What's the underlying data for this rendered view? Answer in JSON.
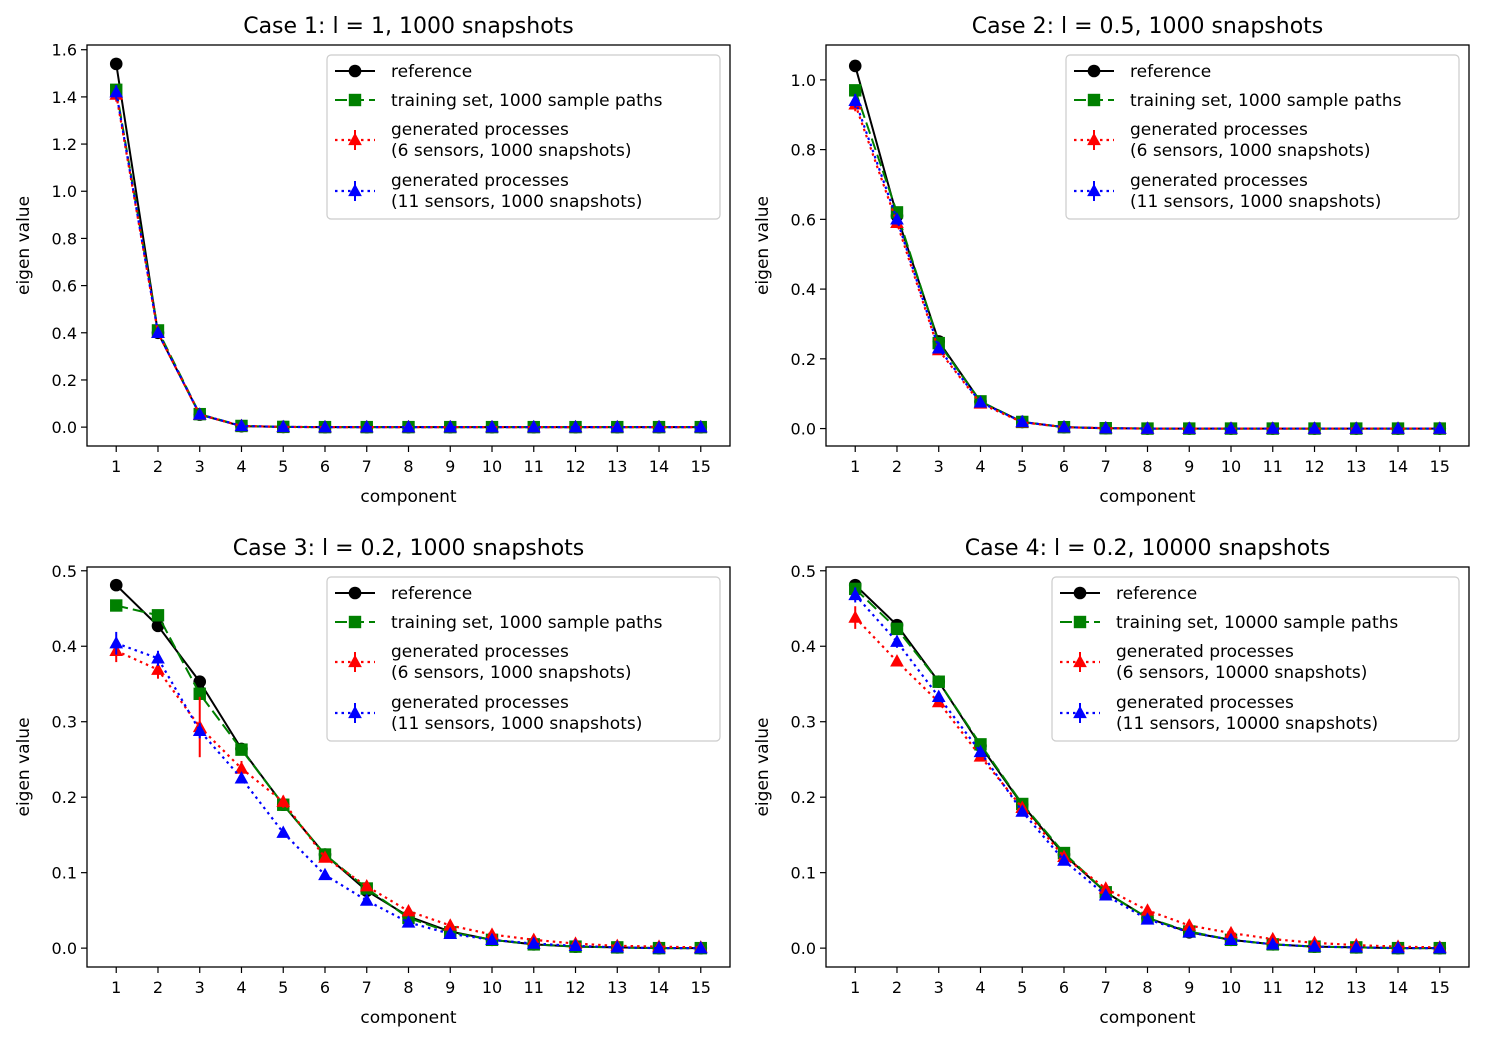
{
  "colors": {
    "reference": "#000000",
    "training": "#008000",
    "gen6": "#ff0000",
    "gen11": "#0000ff"
  },
  "chart_data": [
    {
      "type": "line",
      "title": "Case 1: l = 1, 1000 snapshots",
      "xlabel": "component",
      "ylabel": "eigen value",
      "ylim": [
        -0.08,
        1.62
      ],
      "yticks": [
        0.0,
        0.2,
        0.4,
        0.6,
        0.8,
        1.0,
        1.2,
        1.4,
        1.6
      ],
      "ytick_labels": [
        "0.0",
        "0.2",
        "0.4",
        "0.6",
        "0.8",
        "1.0",
        "1.2",
        "1.4",
        "1.6"
      ],
      "x": [
        1,
        2,
        3,
        4,
        5,
        6,
        7,
        8,
        9,
        10,
        11,
        12,
        13,
        14,
        15
      ],
      "legend_position": "upper right",
      "series": [
        {
          "name": "reference",
          "style": "solid",
          "marker": "circle",
          "color_key": "reference",
          "values": [
            1.54,
            0.4,
            0.053,
            0.004,
            0.001,
            0.0,
            0.0,
            0.0,
            0.0,
            0.0,
            0.0,
            0.0,
            0.0,
            0.0,
            0.0
          ]
        },
        {
          "name": "training set, 1000 sample paths",
          "style": "dashed",
          "marker": "square",
          "color_key": "training",
          "values": [
            1.43,
            0.41,
            0.055,
            0.005,
            0.001,
            0.0,
            0.0,
            0.0,
            0.0,
            0.0,
            0.0,
            0.0,
            0.0,
            0.0,
            0.0
          ]
        },
        {
          "name": [
            "generated processes",
            "(6 sensors, 1000 snapshots)"
          ],
          "style": "dotted",
          "marker": "triangle",
          "color_key": "gen6",
          "values": [
            1.41,
            0.4,
            0.053,
            0.005,
            0.001,
            0.0,
            0.0,
            0.0,
            0.0,
            0.0,
            0.0,
            0.0,
            0.0,
            0.0,
            0.0
          ],
          "errors": [
            0.03,
            0.01,
            0.005,
            0,
            0,
            0,
            0,
            0,
            0,
            0,
            0,
            0,
            0,
            0,
            0
          ]
        },
        {
          "name": [
            "generated processes",
            "(11 sensors, 1000 snapshots)"
          ],
          "style": "dotted",
          "marker": "triangle",
          "color_key": "gen11",
          "values": [
            1.42,
            0.4,
            0.054,
            0.005,
            0.001,
            0.0,
            0.0,
            0.0,
            0.0,
            0.0,
            0.0,
            0.0,
            0.0,
            0.0,
            0.0
          ],
          "errors": [
            0.03,
            0.01,
            0.005,
            0,
            0,
            0,
            0,
            0,
            0,
            0,
            0,
            0,
            0,
            0,
            0
          ]
        }
      ]
    },
    {
      "type": "line",
      "title": "Case 2: l = 0.5, 1000 snapshots",
      "xlabel": "component",
      "ylabel": "eigen value",
      "ylim": [
        -0.05,
        1.1
      ],
      "yticks": [
        0.0,
        0.2,
        0.4,
        0.6,
        0.8,
        1.0
      ],
      "ytick_labels": [
        "0.0",
        "0.2",
        "0.4",
        "0.6",
        "0.8",
        "1.0"
      ],
      "x": [
        1,
        2,
        3,
        4,
        5,
        6,
        7,
        8,
        9,
        10,
        11,
        12,
        13,
        14,
        15
      ],
      "legend_position": "upper right",
      "series": [
        {
          "name": "reference",
          "style": "solid",
          "marker": "circle",
          "color_key": "reference",
          "values": [
            1.04,
            0.61,
            0.25,
            0.077,
            0.019,
            0.004,
            0.001,
            0.0,
            0.0,
            0.0,
            0.0,
            0.0,
            0.0,
            0.0,
            0.0
          ]
        },
        {
          "name": "training set, 1000 sample paths",
          "style": "dashed",
          "marker": "square",
          "color_key": "training",
          "values": [
            0.97,
            0.62,
            0.245,
            0.078,
            0.019,
            0.004,
            0.001,
            0.0,
            0.0,
            0.0,
            0.0,
            0.0,
            0.0,
            0.0,
            0.0
          ]
        },
        {
          "name": [
            "generated processes",
            "(6 sensors, 1000 snapshots)"
          ],
          "style": "dotted",
          "marker": "triangle",
          "color_key": "gen6",
          "values": [
            0.93,
            0.59,
            0.225,
            0.072,
            0.018,
            0.004,
            0.001,
            0.0,
            0.0,
            0.0,
            0.0,
            0.0,
            0.0,
            0.0,
            0.0
          ],
          "errors": [
            0.02,
            0.015,
            0.01,
            0.003,
            0,
            0,
            0,
            0,
            0,
            0,
            0,
            0,
            0,
            0,
            0
          ]
        },
        {
          "name": [
            "generated processes",
            "(11 sensors, 1000 snapshots)"
          ],
          "style": "dotted",
          "marker": "triangle",
          "color_key": "gen11",
          "values": [
            0.94,
            0.6,
            0.23,
            0.075,
            0.019,
            0.004,
            0.001,
            0.0,
            0.0,
            0.0,
            0.0,
            0.0,
            0.0,
            0.0,
            0.0
          ],
          "errors": [
            0.02,
            0.015,
            0.01,
            0.003,
            0,
            0,
            0,
            0,
            0,
            0,
            0,
            0,
            0,
            0,
            0
          ]
        }
      ]
    },
    {
      "type": "line",
      "title": "Case 3: l = 0.2, 1000 snapshots",
      "xlabel": "component",
      "ylabel": "eigen value",
      "ylim": [
        -0.025,
        0.505
      ],
      "yticks": [
        0.0,
        0.1,
        0.2,
        0.3,
        0.4,
        0.5
      ],
      "ytick_labels": [
        "0.0",
        "0.1",
        "0.2",
        "0.3",
        "0.4",
        "0.5"
      ],
      "x": [
        1,
        2,
        3,
        4,
        5,
        6,
        7,
        8,
        9,
        10,
        11,
        12,
        13,
        14,
        15
      ],
      "legend_position": "upper right",
      "series": [
        {
          "name": "reference",
          "style": "solid",
          "marker": "circle",
          "color_key": "reference",
          "values": [
            0.481,
            0.427,
            0.353,
            0.264,
            0.19,
            0.124,
            0.076,
            0.042,
            0.022,
            0.011,
            0.005,
            0.002,
            0.001,
            0.0,
            0.0
          ]
        },
        {
          "name": "training set, 1000 sample paths",
          "style": "dashed",
          "marker": "square",
          "color_key": "training",
          "values": [
            0.454,
            0.441,
            0.337,
            0.263,
            0.19,
            0.124,
            0.079,
            0.04,
            0.021,
            0.011,
            0.005,
            0.002,
            0.001,
            0.0,
            0.0
          ]
        },
        {
          "name": [
            "generated processes",
            "(6 sensors, 1000 snapshots)"
          ],
          "style": "dotted",
          "marker": "triangle",
          "color_key": "gen6",
          "values": [
            0.394,
            0.369,
            0.293,
            0.238,
            0.194,
            0.12,
            0.082,
            0.049,
            0.03,
            0.018,
            0.011,
            0.006,
            0.003,
            0.002,
            0.001
          ],
          "errors": [
            0.015,
            0.012,
            0.04,
            0.01,
            0.008,
            0.006,
            0.004,
            0.003,
            0.002,
            0.001,
            0,
            0,
            0,
            0,
            0
          ]
        },
        {
          "name": [
            "generated processes",
            "(11 sensors, 1000 snapshots)"
          ],
          "style": "dotted",
          "marker": "triangle",
          "color_key": "gen11",
          "values": [
            0.404,
            0.384,
            0.288,
            0.225,
            0.153,
            0.097,
            0.063,
            0.034,
            0.019,
            0.011,
            0.006,
            0.003,
            0.001,
            0.0,
            0.0
          ],
          "errors": [
            0.015,
            0.01,
            0.01,
            0.006,
            0.005,
            0.004,
            0.003,
            0.002,
            0.001,
            0,
            0,
            0,
            0,
            0,
            0
          ]
        }
      ]
    },
    {
      "type": "line",
      "title": "Case 4: l = 0.2, 10000 snapshots",
      "xlabel": "component",
      "ylabel": "eigen value",
      "ylim": [
        -0.025,
        0.505
      ],
      "yticks": [
        0.0,
        0.1,
        0.2,
        0.3,
        0.4,
        0.5
      ],
      "ytick_labels": [
        "0.0",
        "0.1",
        "0.2",
        "0.3",
        "0.4",
        "0.5"
      ],
      "x": [
        1,
        2,
        3,
        4,
        5,
        6,
        7,
        8,
        9,
        10,
        11,
        12,
        13,
        14,
        15
      ],
      "legend_position": "upper right",
      "series": [
        {
          "name": "reference",
          "style": "solid",
          "marker": "circle",
          "color_key": "reference",
          "values": [
            0.481,
            0.428,
            0.353,
            0.268,
            0.19,
            0.124,
            0.074,
            0.04,
            0.021,
            0.011,
            0.005,
            0.002,
            0.001,
            0.0,
            0.0
          ]
        },
        {
          "name": "training set, 10000 sample paths",
          "style": "dashed",
          "marker": "square",
          "color_key": "training",
          "values": [
            0.476,
            0.423,
            0.353,
            0.27,
            0.191,
            0.126,
            0.074,
            0.04,
            0.022,
            0.011,
            0.005,
            0.002,
            0.001,
            0.0,
            0.0
          ]
        },
        {
          "name": [
            "generated processes",
            "(6 sensors, 10000 snapshots)"
          ],
          "style": "dotted",
          "marker": "triangle",
          "color_key": "gen6",
          "values": [
            0.438,
            0.38,
            0.326,
            0.254,
            0.186,
            0.121,
            0.079,
            0.05,
            0.03,
            0.02,
            0.012,
            0.007,
            0.004,
            0.002,
            0.001
          ],
          "errors": [
            0.015,
            0.006,
            0.006,
            0.005,
            0.004,
            0.003,
            0.002,
            0.002,
            0.001,
            0.001,
            0,
            0,
            0,
            0,
            0
          ]
        },
        {
          "name": [
            "generated processes",
            "(11 sensors, 10000 snapshots)"
          ],
          "style": "dotted",
          "marker": "triangle",
          "color_key": "gen11",
          "values": [
            0.468,
            0.406,
            0.333,
            0.26,
            0.181,
            0.116,
            0.07,
            0.038,
            0.021,
            0.011,
            0.005,
            0.002,
            0.001,
            0.0,
            0.0
          ],
          "errors": [
            0.01,
            0.008,
            0.006,
            0.005,
            0.004,
            0.003,
            0.002,
            0.001,
            0.001,
            0,
            0,
            0,
            0,
            0,
            0
          ]
        }
      ]
    }
  ]
}
